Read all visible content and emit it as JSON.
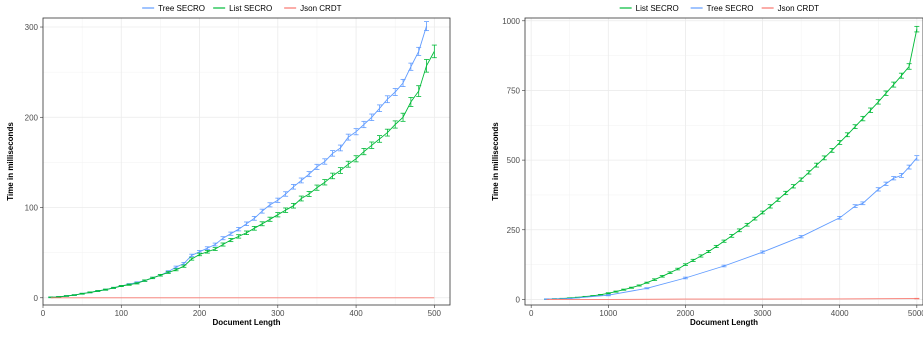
{
  "chart_data": [
    {
      "type": "line",
      "xlabel": "Document Length",
      "ylabel": "Time in milliseconds",
      "xlim": [
        0,
        520
      ],
      "ylim": [
        -8,
        310
      ],
      "xticks": [
        0,
        100,
        200,
        300,
        400,
        500
      ],
      "yticks": [
        0,
        100,
        200,
        300
      ],
      "grid": true,
      "legend_position": "top",
      "series": [
        {
          "name": "Tree SECRO",
          "color": "#619cff",
          "x": [
            10,
            20,
            30,
            40,
            50,
            60,
            70,
            80,
            90,
            100,
            110,
            120,
            130,
            140,
            150,
            160,
            170,
            180,
            190,
            200,
            210,
            220,
            230,
            240,
            250,
            260,
            270,
            280,
            290,
            300,
            310,
            320,
            330,
            340,
            350,
            360,
            370,
            380,
            390,
            400,
            410,
            420,
            430,
            440,
            450,
            460,
            470,
            480,
            490
          ],
          "y": [
            0.5,
            1,
            2,
            3,
            4.5,
            6,
            7.5,
            9,
            11,
            13,
            15,
            17,
            19,
            22,
            25,
            29,
            34,
            38,
            47,
            51,
            55,
            59,
            66,
            71,
            76,
            82,
            88,
            96,
            103,
            108,
            115,
            123,
            130,
            137,
            145,
            151,
            160,
            166,
            178,
            184,
            192,
            200,
            210,
            220,
            228,
            238,
            256,
            273,
            301
          ],
          "err": [
            0.4,
            0.4,
            0.4,
            0.4,
            0.5,
            0.5,
            0.5,
            0.6,
            0.6,
            0.6,
            0.7,
            0.7,
            0.8,
            0.8,
            0.9,
            1,
            1.1,
            1.2,
            1.3,
            1.4,
            1.5,
            1.6,
            1.7,
            1.8,
            1.9,
            2,
            2.1,
            2.2,
            2.3,
            2.4,
            2.5,
            2.6,
            2.7,
            2.8,
            2.9,
            3,
            3.1,
            3.2,
            3.3,
            3.4,
            3.5,
            3.6,
            3.7,
            3.8,
            3.9,
            4,
            4,
            4.5,
            5
          ]
        },
        {
          "name": "List SECRO",
          "color": "#00ba38",
          "x": [
            10,
            20,
            30,
            40,
            50,
            60,
            70,
            80,
            90,
            100,
            110,
            120,
            130,
            140,
            150,
            160,
            170,
            180,
            190,
            200,
            210,
            220,
            230,
            240,
            250,
            260,
            270,
            280,
            290,
            300,
            310,
            320,
            330,
            340,
            350,
            360,
            370,
            380,
            390,
            400,
            410,
            420,
            430,
            440,
            450,
            460,
            470,
            480,
            490,
            500
          ],
          "y": [
            0.5,
            1,
            2,
            3,
            4.5,
            6,
            7.5,
            9,
            11,
            13,
            14.5,
            16,
            19,
            22,
            25,
            28,
            31,
            35,
            43,
            48,
            51,
            54,
            59,
            64,
            68,
            72,
            77,
            82,
            87,
            92,
            97,
            102,
            110,
            115,
            122,
            128,
            135,
            141,
            148,
            154,
            162,
            169,
            176,
            183,
            192,
            200,
            217,
            229,
            257,
            273
          ],
          "err": [
            0.4,
            0.4,
            0.4,
            0.4,
            0.5,
            0.5,
            0.5,
            0.6,
            0.6,
            0.6,
            0.7,
            0.7,
            0.8,
            0.8,
            0.9,
            1,
            1.1,
            1.2,
            1.3,
            1.4,
            1.5,
            1.6,
            1.7,
            1.8,
            1.9,
            2,
            2.1,
            2.2,
            2.3,
            2.4,
            2.5,
            2.6,
            2.7,
            2.8,
            2.9,
            3,
            3.1,
            3.2,
            3.3,
            3.4,
            3.5,
            3.6,
            3.7,
            3.8,
            4,
            4.5,
            5,
            6,
            7,
            7
          ]
        },
        {
          "name": "Json CRDT",
          "color": "#f8766d",
          "x": [
            10,
            100,
            200,
            300,
            400,
            500
          ],
          "y": [
            0,
            0,
            0,
            0,
            0,
            0
          ],
          "err": [
            0,
            0,
            0,
            0,
            0,
            0
          ]
        }
      ]
    },
    {
      "type": "line",
      "xlabel": "Document Length",
      "ylabel": "Time in milliseconds",
      "xlim": [
        -80,
        5080
      ],
      "ylim": [
        -20,
        1010
      ],
      "xticks": [
        0,
        1000,
        2000,
        3000,
        4000,
        5000
      ],
      "yticks": [
        0,
        250,
        500,
        750,
        1000
      ],
      "grid": true,
      "legend_position": "top",
      "series": [
        {
          "name": "List SECRO",
          "color": "#00ba38",
          "x": [
            200,
            300,
            400,
            500,
            600,
            700,
            800,
            900,
            1000,
            1100,
            1200,
            1300,
            1400,
            1500,
            1600,
            1700,
            1800,
            1900,
            2000,
            2100,
            2200,
            2300,
            2400,
            2500,
            2600,
            2700,
            2800,
            2900,
            3000,
            3100,
            3200,
            3300,
            3400,
            3500,
            3600,
            3700,
            3800,
            3900,
            4000,
            4100,
            4200,
            4300,
            4400,
            4500,
            4600,
            4700,
            4800,
            4900,
            5000
          ],
          "y": [
            1,
            2,
            3,
            5,
            7,
            10,
            13,
            17,
            22,
            28,
            35,
            42,
            50,
            60,
            71,
            83,
            96,
            109,
            125,
            140,
            156,
            172,
            190,
            209,
            228,
            248,
            268,
            290,
            312,
            334,
            358,
            382,
            406,
            430,
            456,
            482,
            508,
            535,
            563,
            591,
            620,
            649,
            679,
            709,
            740,
            771,
            803,
            836,
            970
          ],
          "err": [
            1,
            1,
            1,
            1,
            1,
            1,
            1,
            1,
            2,
            2,
            2,
            2,
            2,
            2,
            3,
            3,
            3,
            3,
            3,
            4,
            4,
            4,
            4,
            4,
            5,
            5,
            5,
            5,
            5,
            6,
            6,
            6,
            6,
            6,
            6,
            7,
            7,
            7,
            7,
            7,
            7,
            8,
            8,
            8,
            8,
            9,
            9,
            10,
            10
          ]
        },
        {
          "name": "Tree SECRO",
          "color": "#619cff",
          "x": [
            200,
            500,
            1000,
            1500,
            2000,
            2500,
            3000,
            3500,
            4000,
            4200,
            4300,
            4500,
            4600,
            4700,
            4800,
            4900,
            5000
          ],
          "y": [
            1,
            3,
            15,
            40,
            77,
            120,
            170,
            225,
            293,
            335,
            345,
            395,
            415,
            435,
            445,
            475,
            508
          ],
          "err": [
            1,
            1,
            2,
            2,
            3,
            3,
            4,
            4,
            5,
            5,
            5,
            6,
            6,
            6,
            7,
            7,
            8
          ]
        },
        {
          "name": "Json CRDT",
          "color": "#f8766d",
          "x": [
            200,
            1000,
            2000,
            3000,
            4000,
            5000
          ],
          "y": [
            0,
            0,
            1,
            1,
            2,
            3
          ],
          "err": [
            0,
            0,
            0,
            0,
            0,
            1
          ]
        }
      ]
    }
  ]
}
